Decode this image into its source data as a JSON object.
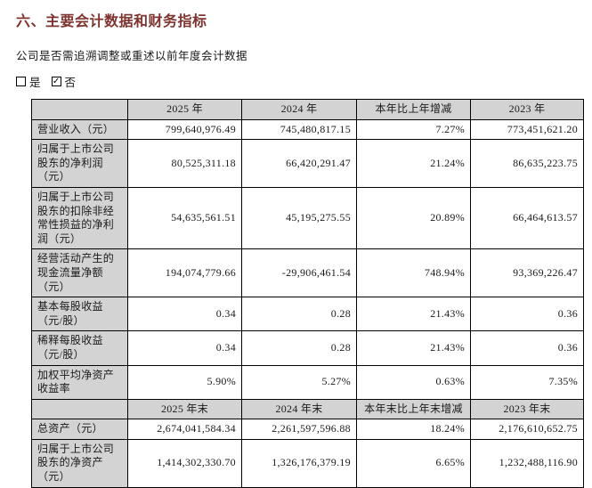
{
  "page": {
    "title": "六、主要会计数据和财务指标",
    "question": "公司是否需追溯调整或重述以前年度会计数据",
    "checkboxes": {
      "yes": {
        "label": "是",
        "checked": false,
        "glyph": ""
      },
      "no": {
        "label": "否",
        "checked": true,
        "glyph": "✓"
      }
    }
  },
  "colors": {
    "title_text": "#7e332f",
    "header_bg": "#d3d3d3",
    "border": "#000000"
  },
  "table": {
    "header1": [
      "",
      "2025 年",
      "2024 年",
      "本年比上年增减",
      "2023 年"
    ],
    "rows1": [
      {
        "label": "营业收入（元）",
        "v2025": "799,640,976.49",
        "v2024": "745,480,817.15",
        "change": "7.27%",
        "v2023": "773,451,621.20"
      },
      {
        "label": "归属于上市公司股东的净利润（元）",
        "v2025": "80,525,311.18",
        "v2024": "66,420,291.47",
        "change": "21.24%",
        "v2023": "86,635,223.75"
      },
      {
        "label": "归属于上市公司股东的扣除非经常性损益的净利润（元）",
        "v2025": "54,635,561.51",
        "v2024": "45,195,275.55",
        "change": "20.89%",
        "v2023": "66,464,613.57"
      },
      {
        "label": "经营活动产生的现金流量净额（元）",
        "v2025": "194,074,779.66",
        "v2024": "-29,906,461.54",
        "change": "748.94%",
        "v2023": "93,369,226.47"
      },
      {
        "label": "基本每股收益（元/股）",
        "v2025": "0.34",
        "v2024": "0.28",
        "change": "21.43%",
        "v2023": "0.36"
      },
      {
        "label": "稀释每股收益（元/股）",
        "v2025": "0.34",
        "v2024": "0.28",
        "change": "21.43%",
        "v2023": "0.36"
      },
      {
        "label": "加权平均净资产收益率",
        "v2025": "5.90%",
        "v2024": "5.27%",
        "change": "0.63%",
        "v2023": "7.35%"
      }
    ],
    "header2": [
      "",
      "2025 年末",
      "2024 年末",
      "本年末比上年末增减",
      "2023 年末"
    ],
    "rows2": [
      {
        "label": "总资产（元）",
        "v2025": "2,674,041,584.34",
        "v2024": "2,261,597,596.88",
        "change": "18.24%",
        "v2023": "2,176,610,652.75"
      },
      {
        "label": "归属于上市公司股东的净资产（元）",
        "v2025": "1,414,302,330.70",
        "v2024": "1,326,176,379.19",
        "change": "6.65%",
        "v2023": "1,232,488,116.90"
      }
    ]
  }
}
